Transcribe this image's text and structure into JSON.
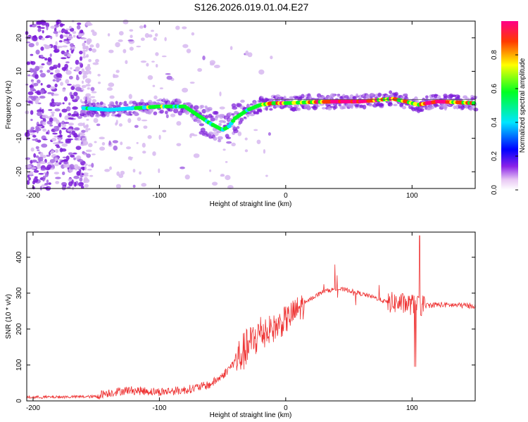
{
  "title": "S126.2026.019.01.04.E27",
  "chart_data": [
    {
      "type": "heatmap",
      "xlabel": "Height of straight line (km)",
      "ylabel": "Frequency (Hz)",
      "xlim": [
        -205,
        150
      ],
      "ylim": [
        -25,
        25
      ],
      "xticks": [
        -200,
        -100,
        0,
        100
      ],
      "yticks": [
        -20,
        -10,
        0,
        10,
        20
      ],
      "colorbar": {
        "label": "Normalized spectral amplitude",
        "range": [
          0,
          1
        ],
        "ticks": [
          "0.0",
          "0.2",
          "0.4",
          "0.6",
          "0.8"
        ]
      },
      "track": {
        "x": [
          -160,
          -140,
          -120,
          -100,
          -90,
          -80,
          -70,
          -60,
          -50,
          -45,
          -40,
          -30,
          -20,
          -10,
          0,
          20,
          40,
          60,
          75,
          85,
          95,
          105,
          120,
          150
        ],
        "y": [
          -1,
          -1.5,
          -1,
          -0.5,
          -0.5,
          -0.5,
          -3,
          -5.5,
          -7.5,
          -6.5,
          -4,
          -1.5,
          0,
          0.5,
          0.5,
          0.8,
          1,
          1,
          1.5,
          1.8,
          1,
          0,
          1,
          0.5
        ]
      }
    },
    {
      "type": "line",
      "xlabel": "Height of straight line (km)",
      "ylabel": "SNR (10 * v/v)",
      "xlim": [
        -205,
        150
      ],
      "ylim": [
        0,
        470
      ],
      "xticks": [
        -200,
        -100,
        0,
        100
      ],
      "yticks": [
        0,
        100,
        200,
        300,
        400
      ],
      "color": "#ee3333",
      "envelope": {
        "x": [
          -205,
          -150,
          -145,
          -125,
          -100,
          -80,
          -60,
          -50,
          -40,
          -30,
          -20,
          -10,
          0,
          10,
          20,
          30,
          40,
          50,
          60,
          70,
          80,
          90,
          100,
          110,
          120,
          150
        ],
        "y": [
          10,
          12,
          20,
          30,
          25,
          30,
          45,
          70,
          110,
          150,
          190,
          200,
          225,
          255,
          285,
          305,
          312,
          308,
          298,
          288,
          275,
          272,
          268,
          265,
          268,
          265
        ]
      }
    }
  ]
}
